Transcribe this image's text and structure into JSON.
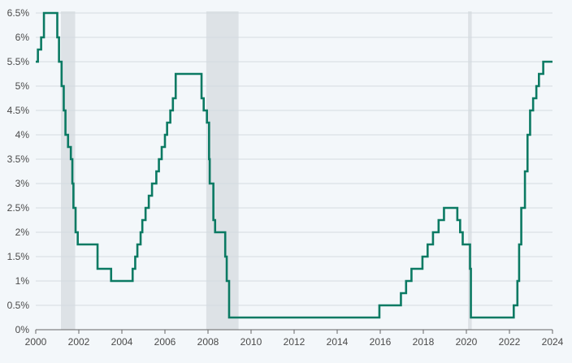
{
  "chart_data": {
    "type": "line",
    "title": "",
    "xlabel": "",
    "ylabel": "",
    "xlim": [
      2000,
      2024
    ],
    "ylim": [
      0,
      6.5
    ],
    "grid": true,
    "colors": {
      "line": "#0b7a63",
      "recession": "#dde2e6",
      "grid": "#d4dbe0",
      "background": "#f3f7fa"
    },
    "x_ticks": [
      2000,
      2002,
      2004,
      2006,
      2008,
      2010,
      2012,
      2014,
      2016,
      2018,
      2020,
      2022,
      2024
    ],
    "x_tick_labels": [
      "2000",
      "2002",
      "2004",
      "2006",
      "2008",
      "2010",
      "2012",
      "2014",
      "2016",
      "2018",
      "2020",
      "2022",
      "2024"
    ],
    "y_ticks": [
      0,
      0.5,
      1,
      1.5,
      2,
      2.5,
      3,
      3.5,
      4,
      4.5,
      5,
      5.5,
      6,
      6.5
    ],
    "y_tick_labels": [
      "0%",
      "0.5%",
      "1%",
      "1.5%",
      "2%",
      "2.5%",
      "3%",
      "3.5%",
      "4%",
      "4.5%",
      "5%",
      "5.5%",
      "6%",
      "6.5%"
    ],
    "shaded_periods": [
      {
        "start": 2001.17,
        "end": 2001.83
      },
      {
        "start": 2007.92,
        "end": 2009.42
      },
      {
        "start": 2020.08,
        "end": 2020.25
      }
    ],
    "series": [
      {
        "step": true,
        "points": [
          [
            2000.0,
            5.5
          ],
          [
            2000.1,
            5.75
          ],
          [
            2000.25,
            6.0
          ],
          [
            2000.38,
            6.5
          ],
          [
            2001.0,
            6.0
          ],
          [
            2001.08,
            5.5
          ],
          [
            2001.2,
            5.0
          ],
          [
            2001.3,
            4.5
          ],
          [
            2001.38,
            4.0
          ],
          [
            2001.5,
            3.75
          ],
          [
            2001.63,
            3.5
          ],
          [
            2001.7,
            3.0
          ],
          [
            2001.75,
            2.5
          ],
          [
            2001.85,
            2.0
          ],
          [
            2001.95,
            1.75
          ],
          [
            2002.87,
            1.25
          ],
          [
            2003.5,
            1.0
          ],
          [
            2004.5,
            1.25
          ],
          [
            2004.62,
            1.5
          ],
          [
            2004.72,
            1.75
          ],
          [
            2004.87,
            2.0
          ],
          [
            2004.95,
            2.25
          ],
          [
            2005.1,
            2.5
          ],
          [
            2005.25,
            2.75
          ],
          [
            2005.4,
            3.0
          ],
          [
            2005.6,
            3.25
          ],
          [
            2005.72,
            3.5
          ],
          [
            2005.85,
            3.75
          ],
          [
            2006.0,
            4.0
          ],
          [
            2006.1,
            4.25
          ],
          [
            2006.25,
            4.5
          ],
          [
            2006.37,
            4.75
          ],
          [
            2006.5,
            5.25
          ],
          [
            2007.7,
            4.75
          ],
          [
            2007.8,
            4.5
          ],
          [
            2007.95,
            4.25
          ],
          [
            2008.05,
            3.5
          ],
          [
            2008.08,
            3.0
          ],
          [
            2008.25,
            2.25
          ],
          [
            2008.33,
            2.0
          ],
          [
            2008.8,
            1.5
          ],
          [
            2008.87,
            1.0
          ],
          [
            2008.98,
            0.25
          ],
          [
            2015.96,
            0.5
          ],
          [
            2016.96,
            0.75
          ],
          [
            2017.2,
            1.0
          ],
          [
            2017.45,
            1.25
          ],
          [
            2017.96,
            1.5
          ],
          [
            2018.2,
            1.75
          ],
          [
            2018.45,
            2.0
          ],
          [
            2018.71,
            2.25
          ],
          [
            2018.96,
            2.5
          ],
          [
            2019.58,
            2.25
          ],
          [
            2019.71,
            2.0
          ],
          [
            2019.83,
            1.75
          ],
          [
            2020.17,
            1.25
          ],
          [
            2020.21,
            0.25
          ],
          [
            2022.2,
            0.5
          ],
          [
            2022.37,
            1.0
          ],
          [
            2022.45,
            1.75
          ],
          [
            2022.55,
            2.5
          ],
          [
            2022.72,
            3.25
          ],
          [
            2022.84,
            4.0
          ],
          [
            2022.96,
            4.5
          ],
          [
            2023.1,
            4.75
          ],
          [
            2023.25,
            5.0
          ],
          [
            2023.37,
            5.25
          ],
          [
            2023.57,
            5.5
          ],
          [
            2024.0,
            5.5
          ]
        ]
      }
    ]
  }
}
